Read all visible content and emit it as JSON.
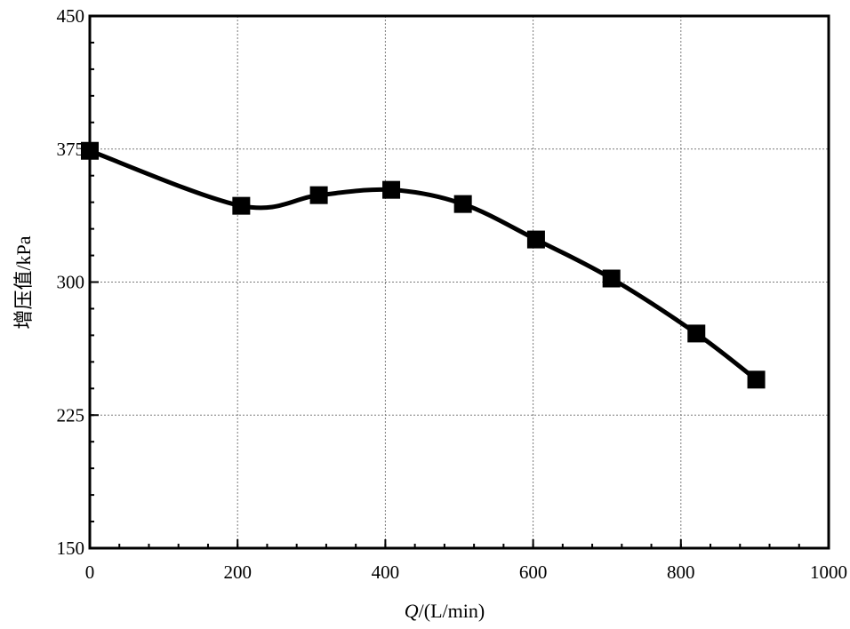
{
  "chart_data": {
    "type": "line",
    "title": "",
    "xlabel_italic": "Q",
    "xlabel_rest": "/(L/min)",
    "ylabel": "增压值/kPa",
    "xlim": [
      0,
      1000
    ],
    "ylim": [
      150,
      450
    ],
    "xticks": [
      0,
      200,
      400,
      600,
      800,
      1000
    ],
    "yticks": [
      150,
      225,
      300,
      375,
      450
    ],
    "x_minor_step": 40,
    "y_minor_step": 15,
    "grid": true,
    "legend": "none",
    "series": [
      {
        "marker": "square",
        "color": "#000000",
        "x": [
          0,
          205,
          310,
          408,
          505,
          604,
          706,
          821,
          902
        ],
        "y": [
          374,
          343,
          349,
          352,
          344,
          324,
          302,
          271,
          245
        ]
      }
    ]
  }
}
